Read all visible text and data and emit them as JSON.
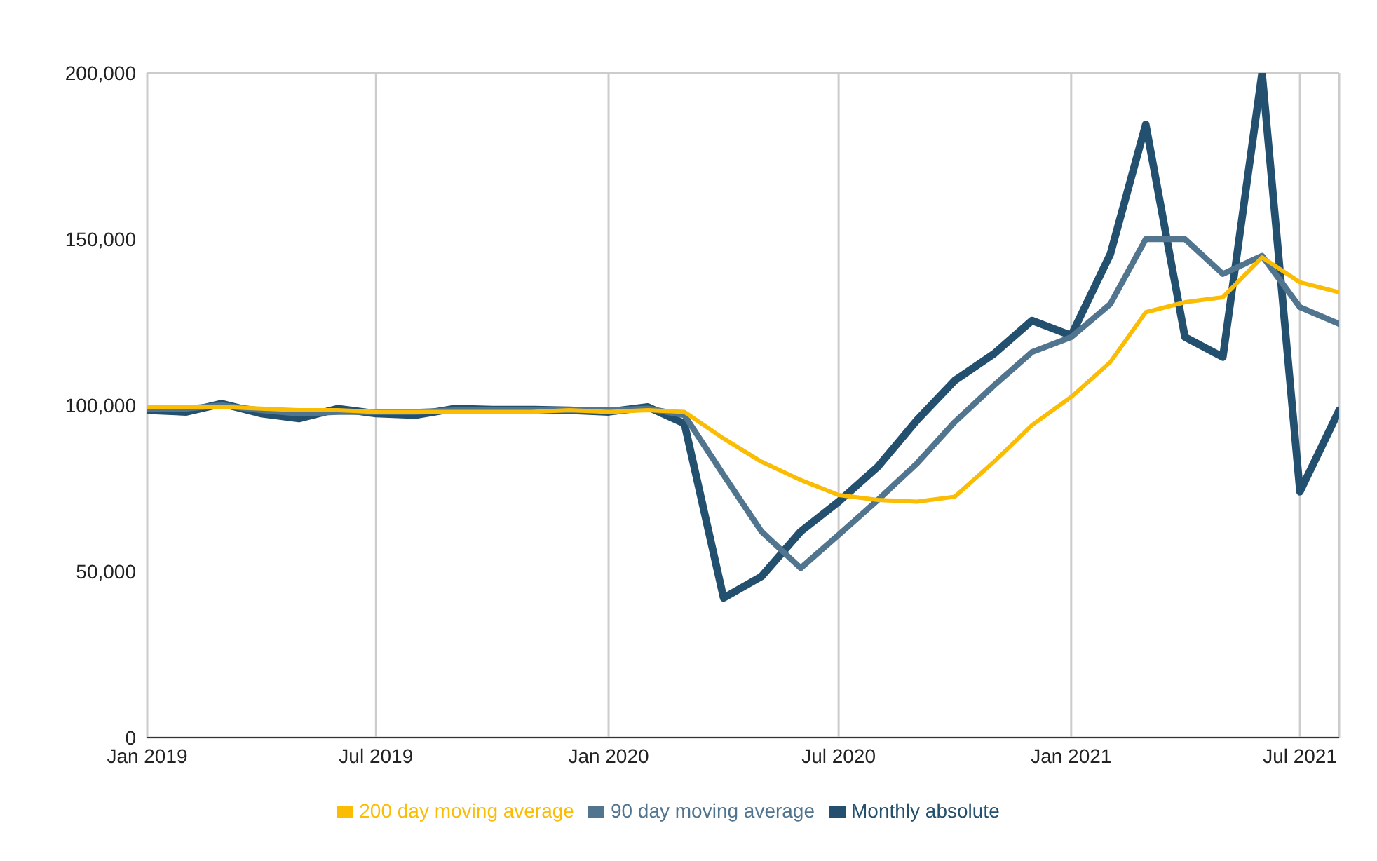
{
  "chart_data": {
    "type": "line",
    "x": [
      "2019-01",
      "2019-02",
      "2019-03",
      "2019-04",
      "2019-05",
      "2019-06",
      "2019-07",
      "2019-08",
      "2019-09",
      "2019-10",
      "2019-11",
      "2019-12",
      "2020-01",
      "2020-02",
      "2020-03",
      "2020-04",
      "2020-05",
      "2020-06",
      "2020-07",
      "2020-08",
      "2020-09",
      "2020-10",
      "2020-11",
      "2020-12",
      "2021-01",
      "2021-02",
      "2021-03",
      "2021-04",
      "2021-05",
      "2021-06",
      "2021-07",
      "2021-08"
    ],
    "series": [
      {
        "name": "Monthly absolute",
        "color": "#24506f",
        "values": [
          98500,
          98000,
          100500,
          97500,
          96000,
          99000,
          97500,
          97000,
          99000,
          98700,
          98700,
          98500,
          98000,
          99500,
          94500,
          42000,
          48500,
          62000,
          71000,
          81500,
          95500,
          107500,
          115500,
          125500,
          121000,
          145500,
          184500,
          120500,
          114500,
          200000,
          74000,
          98500
        ]
      },
      {
        "name": "90 day moving average",
        "color": "#52758f",
        "values": [
          99000,
          99000,
          100000,
          98500,
          97500,
          98000,
          98000,
          98000,
          98500,
          98500,
          98500,
          98500,
          98500,
          99000,
          97000,
          79000,
          62000,
          51000,
          61000,
          71500,
          82500,
          95000,
          106000,
          116000,
          120500,
          130500,
          150000,
          150000,
          139500,
          145000,
          129500,
          124500
        ]
      },
      {
        "name": "200 day moving average",
        "color": "#fbbc04",
        "values": [
          99500,
          99500,
          99500,
          99000,
          98500,
          98500,
          98000,
          98000,
          98000,
          98000,
          98000,
          98500,
          98000,
          98500,
          98000,
          90000,
          83000,
          77500,
          73000,
          71500,
          71000,
          72500,
          83000,
          94000,
          102500,
          113000,
          128000,
          131000,
          132500,
          144500,
          137000,
          134000
        ]
      }
    ],
    "xlim": [
      "2019-01",
      "2021-08"
    ],
    "xticks": [
      {
        "value": "2019-01",
        "label": "Jan 2019"
      },
      {
        "value": "2019-07",
        "label": "Jul 2019"
      },
      {
        "value": "2020-01",
        "label": "Jan 2020"
      },
      {
        "value": "2020-07",
        "label": "Jul 2020"
      },
      {
        "value": "2021-01",
        "label": "Jan 2021"
      },
      {
        "value": "2021-07",
        "label": "Jul 2021"
      }
    ],
    "ylim": [
      0,
      200000
    ],
    "yticks": [
      {
        "value": 0,
        "label": "0"
      },
      {
        "value": 50000,
        "label": "50,000"
      },
      {
        "value": 100000,
        "label": "100,000"
      },
      {
        "value": 150000,
        "label": "150,000"
      },
      {
        "value": 200000,
        "label": "200,000"
      }
    ],
    "grid": true,
    "legend": "bottom",
    "marker": "none",
    "line_style": "solid"
  }
}
